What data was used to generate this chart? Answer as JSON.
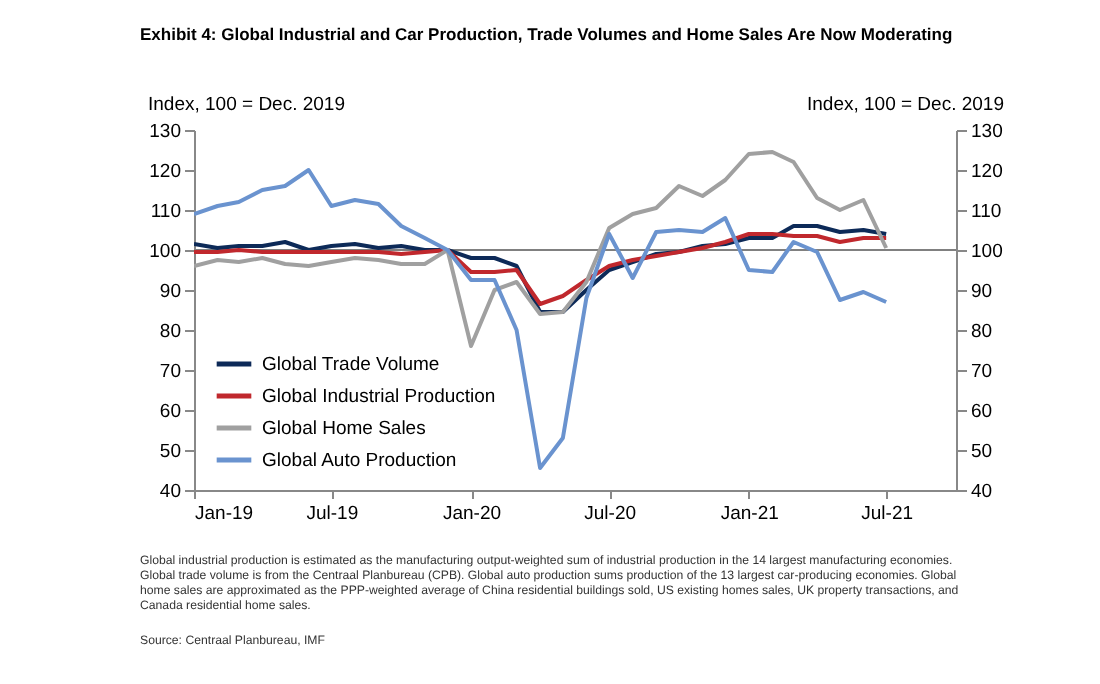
{
  "chart_data": {
    "type": "line",
    "title": "Exhibit 4: Global Industrial and Car Production, Trade Volumes and Home Sales Are Now Moderating",
    "ylabel": "Index, 100 = Dec. 2019",
    "y2label": "Index, 100 = Dec. 2019",
    "x": [
      "2019-01",
      "2019-02",
      "2019-03",
      "2019-04",
      "2019-05",
      "2019-06",
      "2019-07",
      "2019-08",
      "2019-09",
      "2019-10",
      "2019-11",
      "2019-12",
      "2020-01",
      "2020-02",
      "2020-03",
      "2020-04",
      "2020-05",
      "2020-06",
      "2020-07",
      "2020-08",
      "2020-09",
      "2020-10",
      "2020-11",
      "2020-12",
      "2021-01",
      "2021-02",
      "2021-03",
      "2021-04",
      "2021-05",
      "2021-06",
      "2021-07"
    ],
    "series": [
      {
        "name": "Global Trade Volume",
        "color": "#0d2a58",
        "values": [
          101.5,
          100.5,
          101,
          101,
          102,
          100,
          101,
          101.5,
          100.5,
          101,
          100,
          100,
          98,
          98,
          96,
          84.5,
          84.5,
          90,
          95,
          97,
          99,
          99.5,
          101,
          101.5,
          103,
          103,
          106,
          106,
          104.5,
          105,
          104
        ]
      },
      {
        "name": "Global Industrial Production",
        "color": "#c0282d",
        "values": [
          99.5,
          99.5,
          100,
          99.5,
          99.5,
          99.5,
          99.5,
          99.5,
          99.5,
          99,
          99.5,
          100,
          94.5,
          94.5,
          95,
          86.5,
          88.5,
          92.5,
          96,
          97.5,
          98.5,
          99.5,
          100.5,
          102,
          104,
          104,
          103.5,
          103.5,
          102,
          103,
          103
        ]
      },
      {
        "name": "Global Home Sales",
        "color": "#a0a0a0",
        "values": [
          96,
          97.5,
          97,
          98,
          96.5,
          96,
          97,
          98,
          97.5,
          96.5,
          96.5,
          100,
          76,
          90,
          92,
          84,
          84.5,
          92,
          105.5,
          109,
          110.5,
          116,
          113.5,
          117.5,
          124,
          124.5,
          122,
          113,
          110,
          112.5,
          100.5
        ]
      },
      {
        "name": "Global Auto Production",
        "color": "#6a93cf",
        "values": [
          109,
          111,
          112,
          115,
          116,
          120,
          111,
          112.5,
          111.5,
          106,
          103,
          100,
          92.5,
          92.5,
          80,
          45.5,
          53,
          88,
          104,
          93,
          104.5,
          105,
          104.5,
          108,
          95,
          94.5,
          102,
          99.5,
          87.5,
          89.5,
          87
        ]
      }
    ],
    "xlim": [
      "2019-01",
      "2021-10"
    ],
    "xticks": [
      {
        "value": "2019-01",
        "label": "Jan-19"
      },
      {
        "value": "2019-07",
        "label": "Jul-19"
      },
      {
        "value": "2020-01",
        "label": "Jan-20"
      },
      {
        "value": "2020-07",
        "label": "Jul-20"
      },
      {
        "value": "2021-01",
        "label": "Jan-21"
      },
      {
        "value": "2021-07",
        "label": "Jul-21"
      }
    ],
    "ylim": [
      40,
      130
    ],
    "yticks": [
      40,
      50,
      60,
      70,
      80,
      90,
      100,
      110,
      120,
      130
    ],
    "y2lim": [
      40,
      130
    ],
    "y2ticks": [
      40,
      50,
      60,
      70,
      80,
      90,
      100,
      110,
      120,
      130
    ],
    "ref_lines": [
      {
        "axis": "y",
        "value": 100,
        "color": "#808080"
      }
    ],
    "grid": false,
    "legend": "bottom left",
    "annotations": [
      "Global industrial production is estimated as the manufacturing output-weighted sum of industrial production in the 14 largest manufacturing economies. Global trade volume is from the Centraal Planbureau (CPB).  Global auto production sums production of the 13 largest car-producing economies.  Global home sales are approximated as the PPP-weighted average of China residential buildings sold, US existing homes sales, UK property transactions, and Canada residential home sales.",
      "Source: Centraal Planbureau, IMF"
    ]
  }
}
